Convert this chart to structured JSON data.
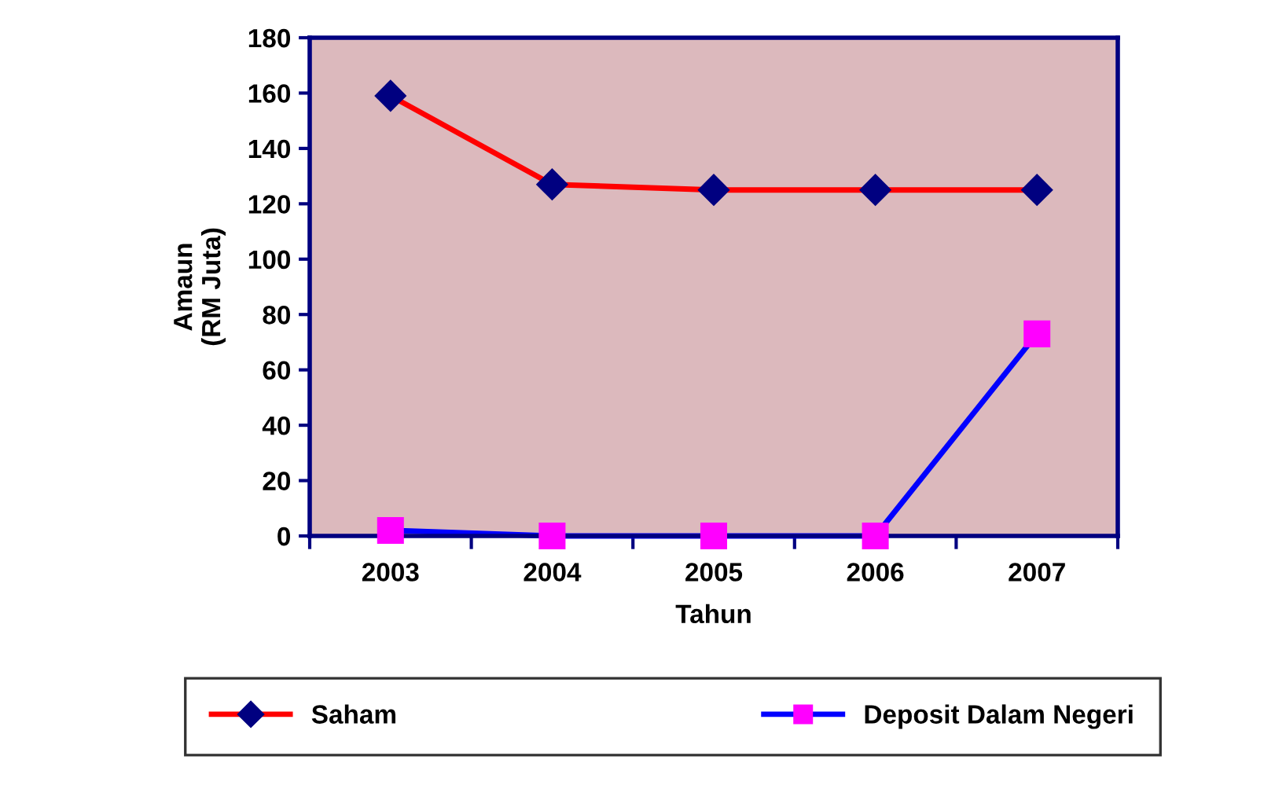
{
  "chart_data": {
    "type": "line",
    "xlabel": "Tahun",
    "ylabel": "Amaun\n(RM Juta)",
    "categories": [
      "2003",
      "2004",
      "2005",
      "2006",
      "2007"
    ],
    "series": [
      {
        "name": "Saham",
        "color": "#ff0000",
        "marker": "diamond",
        "colors": [
          "#000080",
          "#000080",
          "#000080",
          "#000080",
          "#000080"
        ],
        "values": [
          159,
          127,
          125,
          125,
          125
        ]
      },
      {
        "name": "Deposit Dalam Negeri",
        "color": "#0000ff",
        "marker": "square",
        "colors": [
          "#ff00ff",
          "#ff00ff",
          "#ff00ff",
          "#ff00ff",
          "#ff00ff"
        ],
        "values": [
          2,
          0,
          0,
          0,
          73
        ]
      }
    ],
    "ylim": [
      0,
      180
    ],
    "yticks": [
      0,
      20,
      40,
      60,
      80,
      100,
      120,
      140,
      160,
      180
    ],
    "grid": false,
    "legend": "bottom"
  }
}
